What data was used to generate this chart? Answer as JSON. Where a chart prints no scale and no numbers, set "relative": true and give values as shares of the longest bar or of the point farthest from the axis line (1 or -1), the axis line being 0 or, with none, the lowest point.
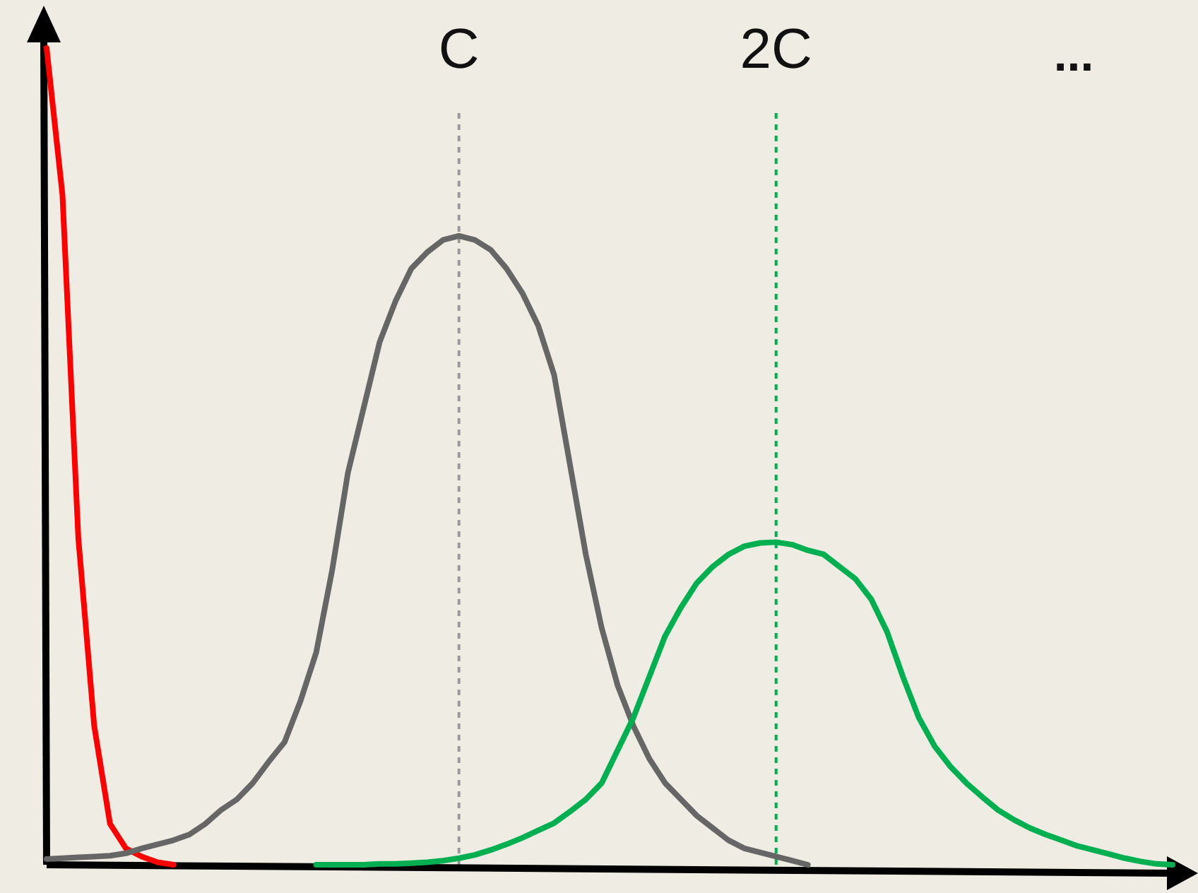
{
  "chart_data": {
    "type": "line",
    "relative": true,
    "tick_labels": "x",
    "line_style": "solid",
    "categories": [
      null,
      null,
      null,
      null,
      null,
      null,
      null,
      null,
      null,
      null,
      null,
      null,
      null,
      null,
      null,
      null,
      null,
      null,
      null,
      null,
      null,
      null,
      null,
      null,
      null,
      null,
      "C",
      null,
      null,
      null,
      null,
      null,
      null,
      null,
      null,
      null,
      null,
      null,
      null,
      null,
      null,
      null,
      null,
      null,
      null,
      null,
      "2C",
      null,
      null,
      null,
      null,
      null,
      null,
      null,
      null,
      null,
      null,
      null,
      null,
      null,
      null,
      null,
      null,
      null,
      null,
      null,
      null,
      null,
      null,
      null,
      null,
      null
    ],
    "series": [
      {
        "color": "#ff0000",
        "values": [
          1.0,
          0.82,
          0.4,
          0.17,
          0.05,
          0.02,
          0.01,
          0.003,
          0,
          null,
          null,
          null,
          null,
          null,
          null,
          null,
          null,
          null,
          null,
          null,
          null,
          null,
          null,
          null,
          null,
          null,
          null,
          null,
          null,
          null,
          null,
          null,
          null,
          null,
          null,
          null,
          null,
          null,
          null,
          null,
          null,
          null,
          null,
          null,
          null,
          null,
          null,
          null,
          null,
          null,
          null,
          null,
          null,
          null,
          null,
          null,
          null,
          null,
          null,
          null,
          null,
          null,
          null,
          null,
          null,
          null,
          null,
          null,
          null,
          null,
          null,
          null
        ]
      },
      {
        "color": "#666666",
        "values": [
          0.007,
          0.008,
          0.009,
          0.01,
          0.011,
          0.014,
          0.02,
          0.025,
          0.03,
          0.037,
          0.05,
          0.067,
          0.08,
          0.1,
          0.126,
          0.15,
          0.2,
          0.26,
          0.36,
          0.48,
          0.56,
          0.64,
          0.69,
          0.73,
          0.75,
          0.765,
          0.77,
          0.765,
          0.753,
          0.73,
          0.7,
          0.66,
          0.6,
          0.49,
          0.38,
          0.29,
          0.22,
          0.17,
          0.13,
          0.1,
          0.08,
          0.06,
          0.045,
          0.03,
          0.02,
          0.015,
          0.01,
          0.005,
          0,
          null,
          null,
          null,
          null,
          null,
          null,
          null,
          null,
          null,
          null,
          null,
          null,
          null,
          null,
          null,
          null,
          null,
          null,
          null,
          null,
          null,
          null,
          null
        ]
      },
      {
        "color": "#00b050",
        "values": [
          null,
          null,
          null,
          null,
          null,
          null,
          null,
          null,
          null,
          null,
          null,
          null,
          null,
          null,
          null,
          null,
          null,
          0,
          0,
          0,
          0,
          0.001,
          0.001,
          0.002,
          0.003,
          0.005,
          0.008,
          0.012,
          0.018,
          0.025,
          0.033,
          0.042,
          0.051,
          0.065,
          0.08,
          0.1,
          0.14,
          0.18,
          0.23,
          0.28,
          0.315,
          0.345,
          0.365,
          0.38,
          0.39,
          0.394,
          0.395,
          0.392,
          0.385,
          0.38,
          0.365,
          0.35,
          0.325,
          0.285,
          0.23,
          0.18,
          0.145,
          0.12,
          0.1,
          0.083,
          0.067,
          0.055,
          0.045,
          0.037,
          0.03,
          0.023,
          0.018,
          0.013,
          0.008,
          0.004,
          0.001,
          0
        ]
      }
    ],
    "ref_lines": [
      {
        "axis": "x",
        "value": "C",
        "color": "#999999",
        "line_style": "dashed"
      },
      {
        "axis": "x",
        "value": "2C",
        "color": "#00b050",
        "line_style": "dashed"
      }
    ],
    "annotations": [
      "..."
    ]
  }
}
